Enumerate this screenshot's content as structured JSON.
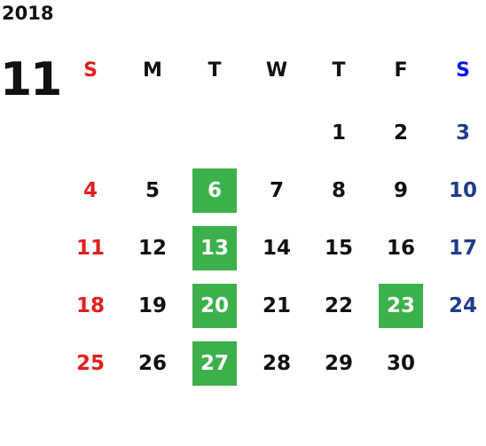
{
  "calendar": {
    "year": "2018",
    "month": "11",
    "weekdays": [
      "S",
      "M",
      "T",
      "W",
      "T",
      "F",
      "S"
    ],
    "weeks": [
      [
        null,
        null,
        null,
        null,
        {
          "day": 1
        },
        {
          "day": 2
        },
        {
          "day": 3
        }
      ],
      [
        {
          "day": 4
        },
        {
          "day": 5
        },
        {
          "day": 6,
          "marked": true
        },
        {
          "day": 7
        },
        {
          "day": 8
        },
        {
          "day": 9
        },
        {
          "day": 10
        }
      ],
      [
        {
          "day": 11
        },
        {
          "day": 12
        },
        {
          "day": 13,
          "marked": true
        },
        {
          "day": 14
        },
        {
          "day": 15
        },
        {
          "day": 16
        },
        {
          "day": 17
        }
      ],
      [
        {
          "day": 18
        },
        {
          "day": 19
        },
        {
          "day": 20,
          "marked": true
        },
        {
          "day": 21
        },
        {
          "day": 22
        },
        {
          "day": 23,
          "marked": true
        },
        {
          "day": 24
        }
      ],
      [
        {
          "day": 25
        },
        {
          "day": 26
        },
        {
          "day": 27,
          "marked": true
        },
        {
          "day": 28
        },
        {
          "day": 29
        },
        {
          "day": 30
        },
        null
      ]
    ]
  }
}
